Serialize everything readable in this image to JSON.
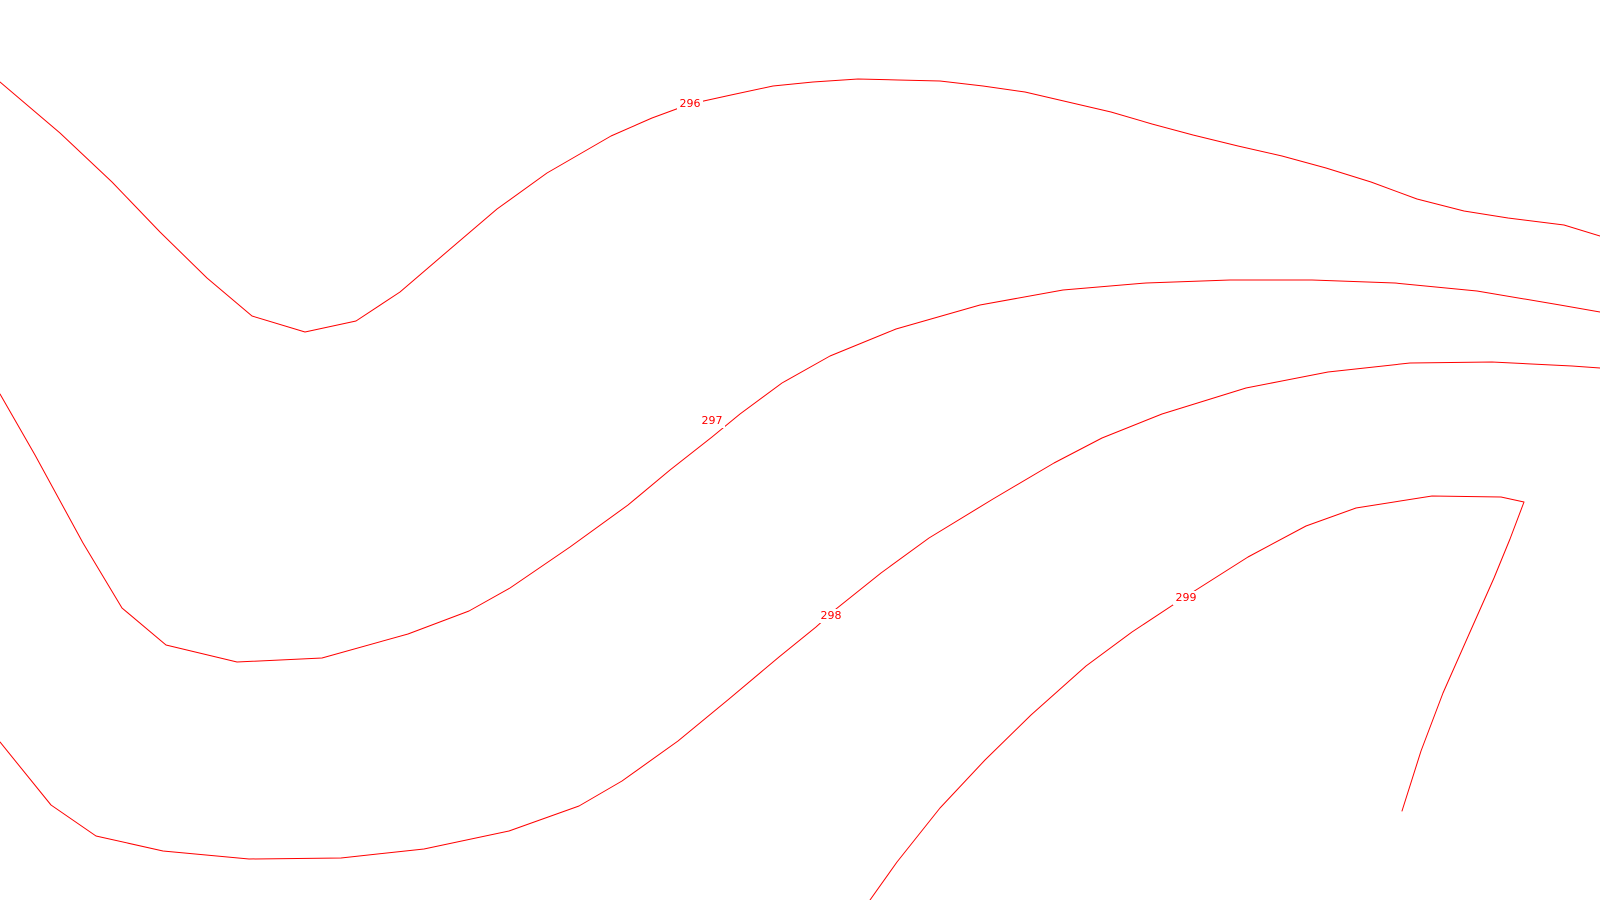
{
  "map": {
    "background_color": "#ffffff",
    "contour_color": "#ff0000",
    "contours": [
      {
        "id": "296",
        "label": "296"
      },
      {
        "id": "297",
        "label": "297"
      },
      {
        "id": "298",
        "label": "298"
      },
      {
        "id": "299",
        "label": "299"
      },
      {
        "id": "299-east",
        "label": ""
      }
    ]
  }
}
